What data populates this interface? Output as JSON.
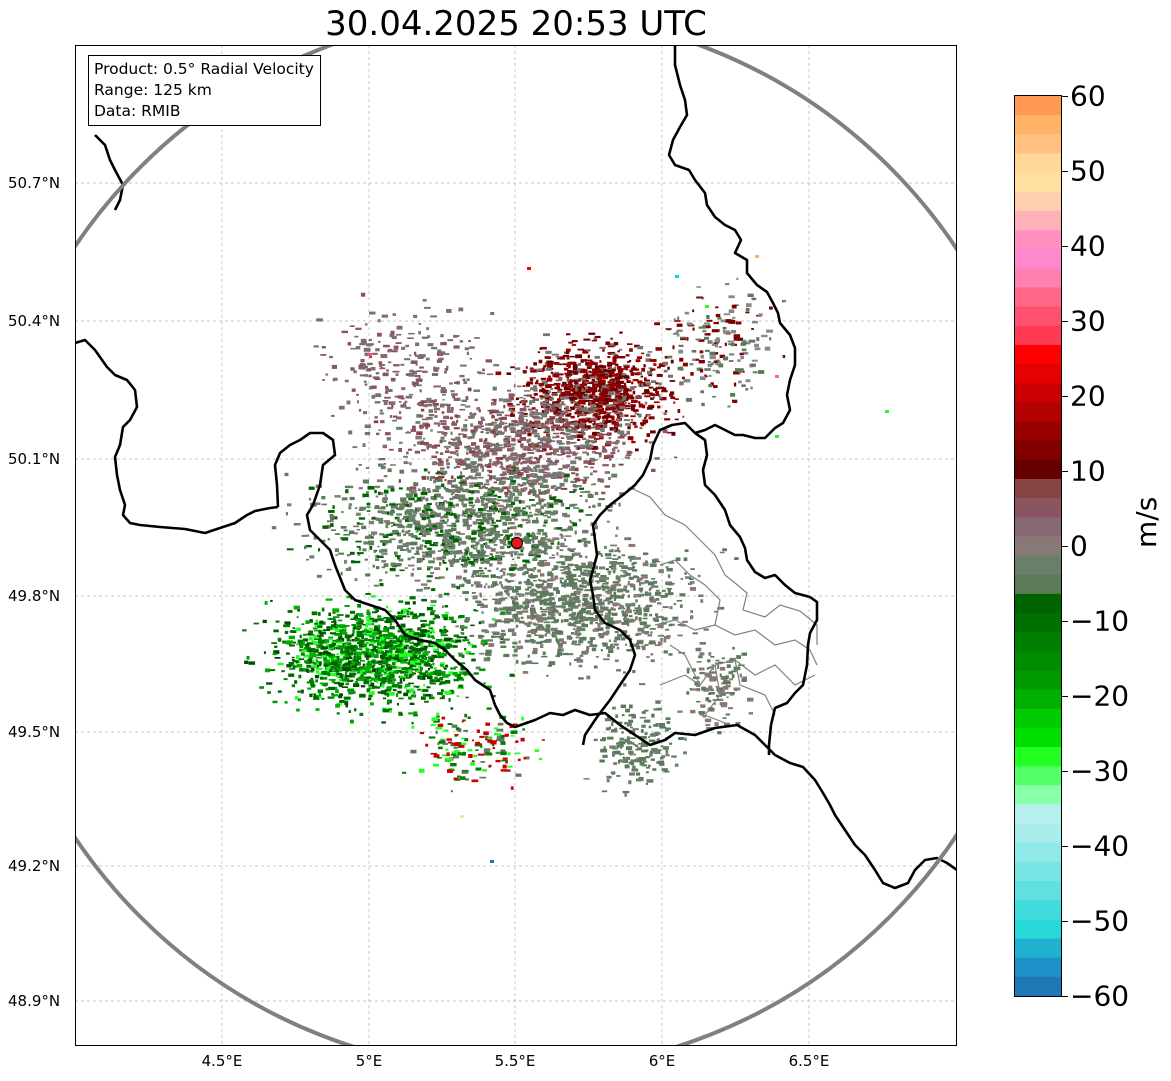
{
  "title": "30.04.2025 20:53 UTC",
  "info": {
    "product": "Product: 0.5° Radial Velocity",
    "range": "Range: 125 km",
    "data": "Data: RMIB"
  },
  "map": {
    "lat_labels": [
      "50.7°N",
      "50.4°N",
      "50.1°N",
      "49.8°N",
      "49.5°N",
      "49.2°N",
      "48.9°N"
    ],
    "lon_labels": [
      "4.5°E",
      "5°E",
      "5.5°E",
      "6°E",
      "6.5°E"
    ],
    "radar_site_color": "#e41a1c",
    "range_ring_color": "#808080",
    "border_color": "#000000",
    "admin_border_color": "#808080"
  },
  "colorbar": {
    "unit": "m/s",
    "ticks": [
      "60",
      "50",
      "40",
      "30",
      "20",
      "10",
      "0",
      "−10",
      "−20",
      "−30",
      "−40",
      "−50",
      "−60"
    ],
    "colors": [
      "#ff9955",
      "#ffb366",
      "#ffc080",
      "#ffd89a",
      "#ffe0a0",
      "#ffd0b0",
      "#ffb0b8",
      "#ff90c0",
      "#ff88cc",
      "#ff80b0",
      "#ff6688",
      "#ff5070",
      "#ff3a55",
      "#ff0000",
      "#e60000",
      "#cc0000",
      "#b30000",
      "#990000",
      "#800000",
      "#660000",
      "#884444",
      "#8a5560",
      "#886872",
      "#887878",
      "#6a7f6a",
      "#5a7a5a",
      "#006400",
      "#007000",
      "#008000",
      "#008c00",
      "#009900",
      "#00b000",
      "#00cc00",
      "#00e000",
      "#22ff22",
      "#55ff66",
      "#88ffa8",
      "#b8f0f0",
      "#a8ecec",
      "#90e8e8",
      "#78e4e4",
      "#60e0e0",
      "#40dcdc",
      "#28d8d8",
      "#20b0d0",
      "#2090c8",
      "#1f77b4"
    ]
  }
}
